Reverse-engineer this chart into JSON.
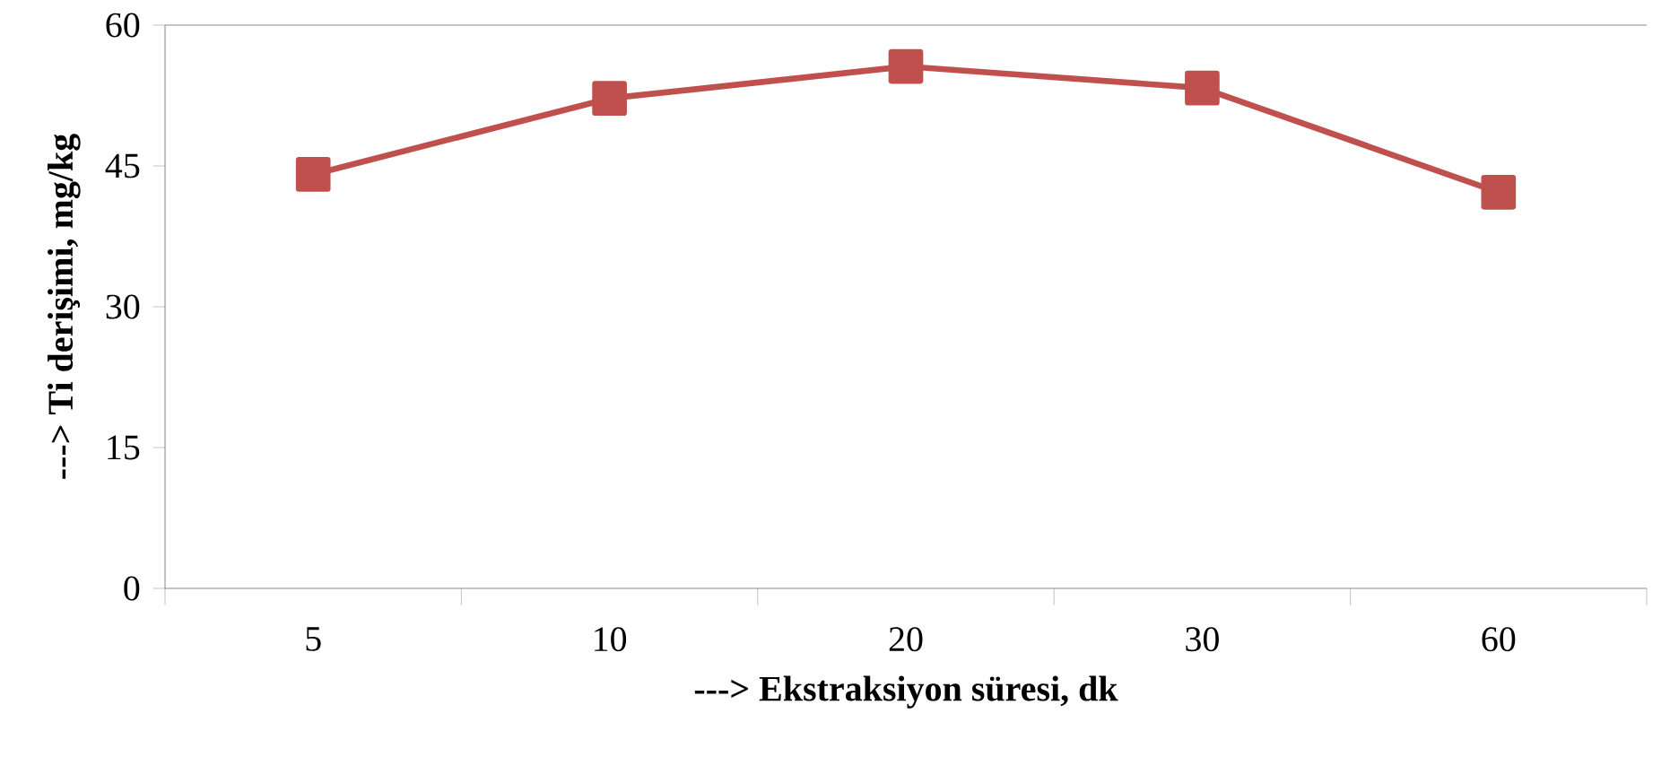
{
  "chart_data": {
    "type": "line",
    "xlabel": "---> Ekstraksiyon süresi, dk",
    "ylabel": "---> Ti derişimi, mg/kg",
    "categories": [
      "5",
      "10",
      "20",
      "30",
      "60"
    ],
    "series": [
      {
        "color": "#c0504d",
        "values": [
          44.1,
          52.2,
          55.6,
          53.3,
          42.2
        ]
      }
    ],
    "ylim": [
      0,
      60
    ],
    "yticks": [
      0,
      15,
      30,
      45,
      60
    ],
    "marker": "square",
    "line_style": "solid"
  }
}
